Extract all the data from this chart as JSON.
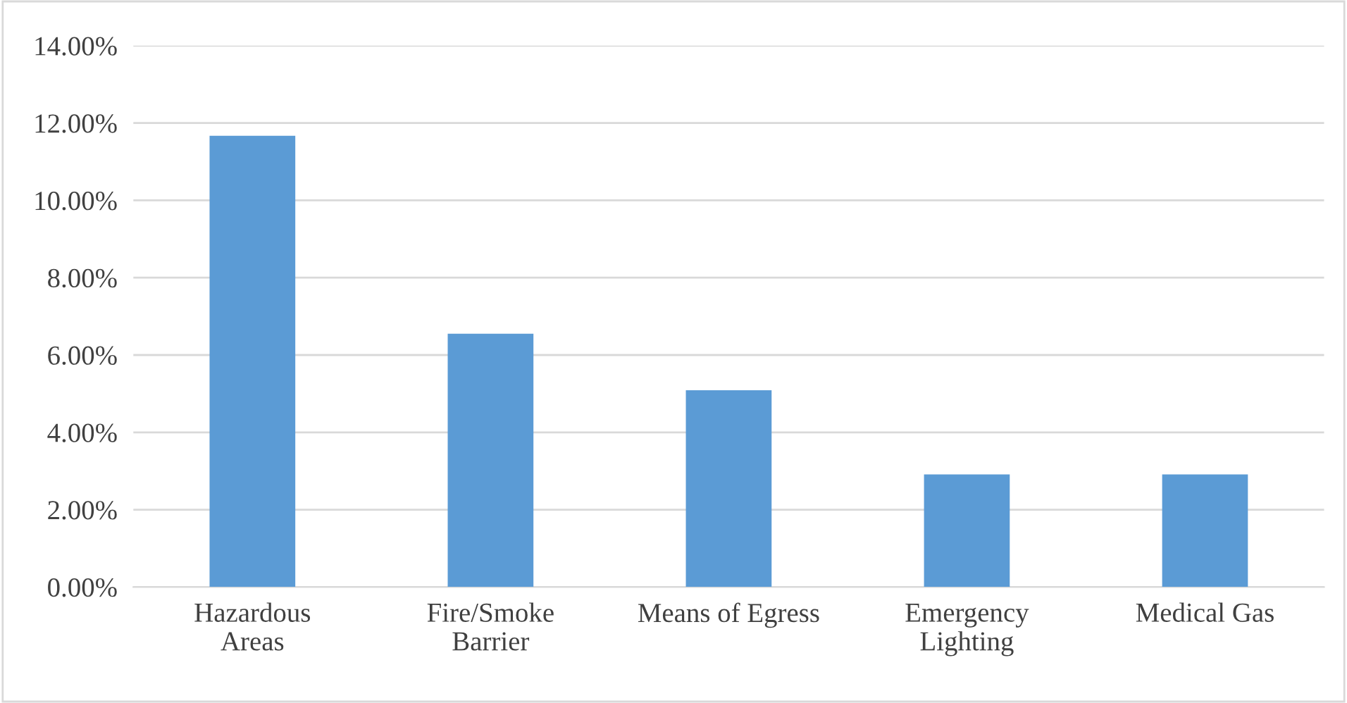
{
  "chart_data": {
    "type": "bar",
    "categories": [
      "Hazardous\nAreas",
      "Fire/Smoke\nBarrier",
      "Means of Egress",
      "Emergency\nLighting",
      "Medical Gas"
    ],
    "values": [
      11.67,
      6.55,
      5.09,
      2.91,
      2.91
    ],
    "color": "#5b9bd5",
    "ylim": [
      0,
      14
    ],
    "yticks": [
      {
        "value": 0,
        "label": "0.00%"
      },
      {
        "value": 2,
        "label": "2.00%"
      },
      {
        "value": 4,
        "label": "4.00%"
      },
      {
        "value": 6,
        "label": "6.00%"
      },
      {
        "value": 8,
        "label": "8.00%"
      },
      {
        "value": 10,
        "label": "10.00%"
      },
      {
        "value": 12,
        "label": "12.00%"
      },
      {
        "value": 14,
        "label": "14.00%"
      }
    ],
    "grid": "y"
  }
}
